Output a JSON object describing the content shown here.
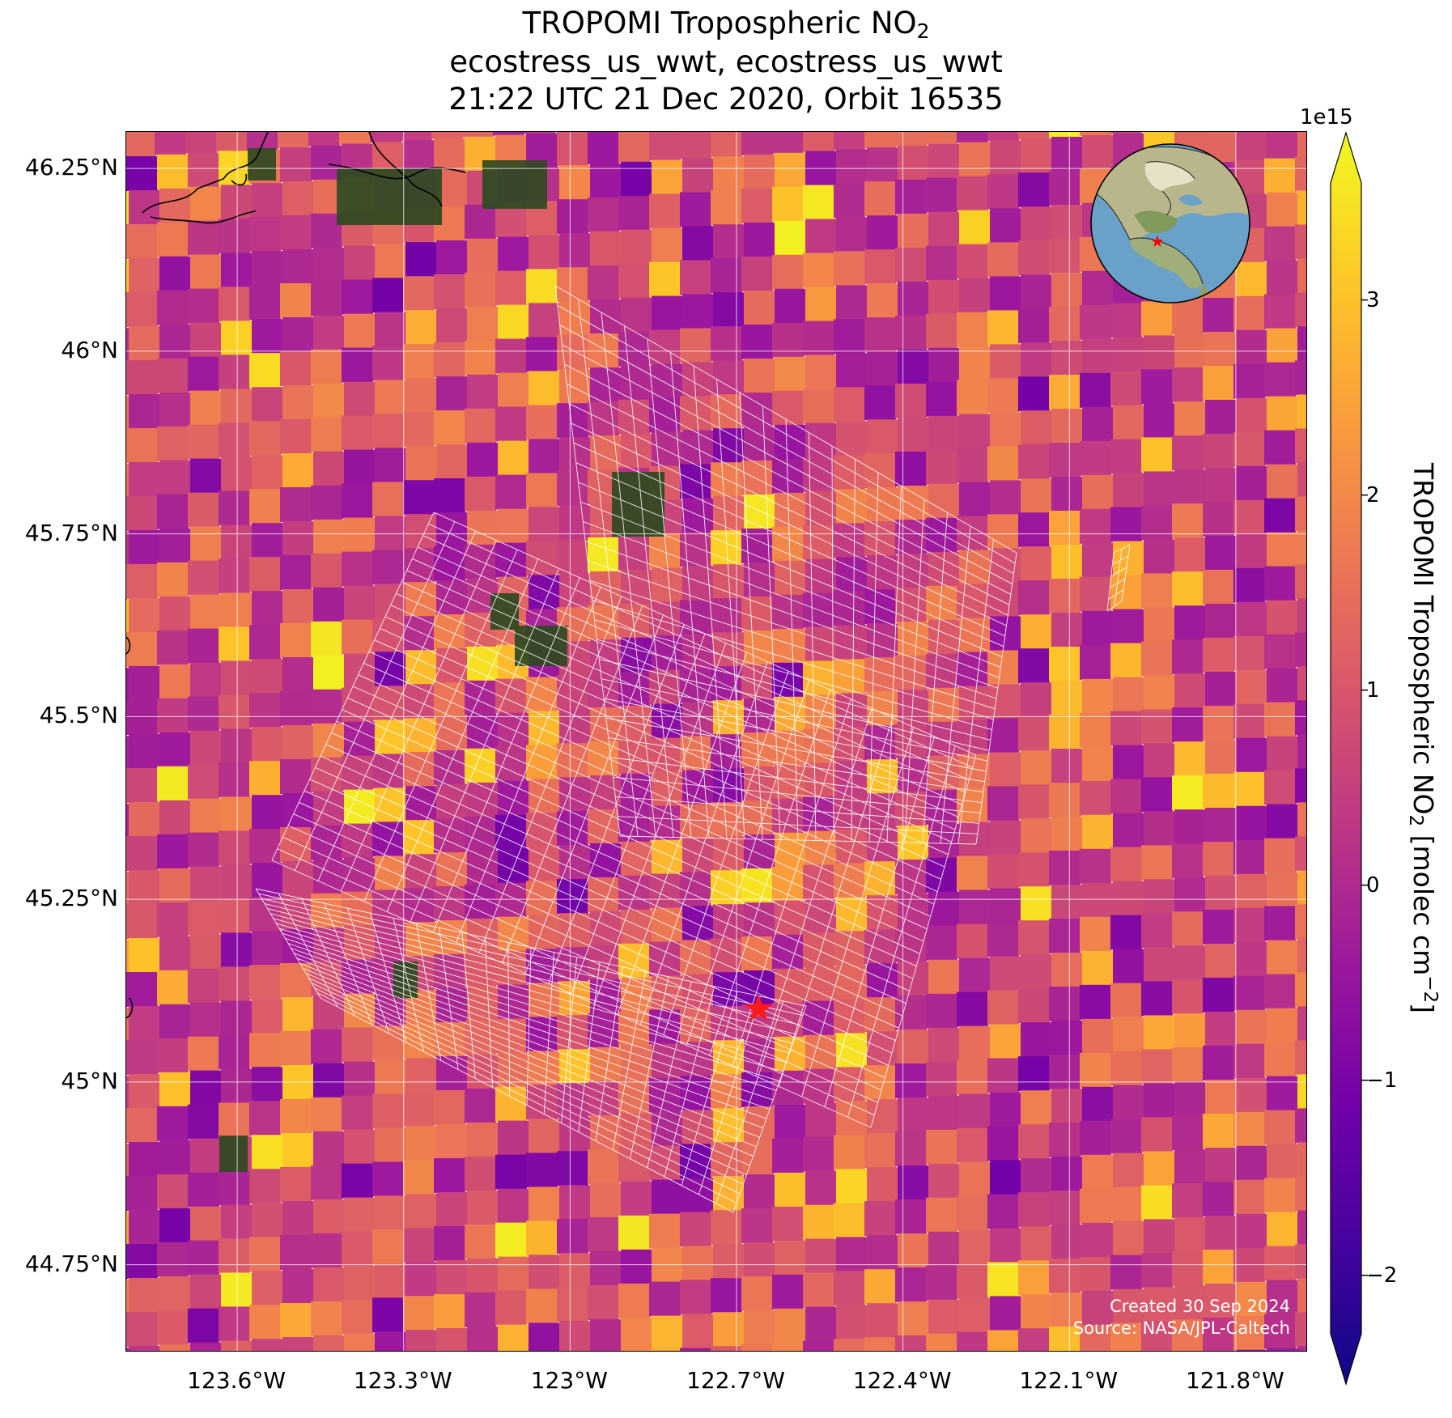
{
  "title": {
    "main": "TROPOMI Tropospheric NO",
    "main_sub": "2",
    "line2": "ecostress_us_wwt, ecostress_us_wwt",
    "line3": "21:22 UTC 21 Dec 2020, Orbit 16535"
  },
  "map": {
    "lon_range": [
      -123.8,
      -121.67
    ],
    "lat_range": [
      44.63,
      46.3
    ],
    "lat_ticks": [
      {
        "value": 46.25,
        "label": "46.25°N"
      },
      {
        "value": 46.0,
        "label": "46°N"
      },
      {
        "value": 45.75,
        "label": "45.75°N"
      },
      {
        "value": 45.5,
        "label": "45.5°N"
      },
      {
        "value": 45.25,
        "label": "45.25°N"
      },
      {
        "value": 45.0,
        "label": "45°N"
      },
      {
        "value": 44.75,
        "label": "44.75°N"
      }
    ],
    "lon_ticks": [
      {
        "value": -123.6,
        "label": "123.6°W"
      },
      {
        "value": -123.3,
        "label": "123.3°W"
      },
      {
        "value": -123.0,
        "label": "123°W"
      },
      {
        "value": -122.7,
        "label": "122.7°W"
      },
      {
        "value": -122.4,
        "label": "122.4°W"
      },
      {
        "value": -122.1,
        "label": "122.1°W"
      },
      {
        "value": -121.8,
        "label": "121.8°W"
      }
    ],
    "site_marker": {
      "lon": -122.66,
      "lat": 45.1,
      "color": "#ff1a1a"
    },
    "gridlines": true,
    "overlay": "inset globe (top-right) centered on North America with red star at site",
    "credits": {
      "line1": "Created 30 Sep 2024",
      "line2": "Source: NASA/JPL-Caltech"
    }
  },
  "colorbar": {
    "colormap": "plasma",
    "range": [
      -2.3,
      3.6
    ],
    "exponent_label": "1e15",
    "ticks": [
      {
        "value": 3,
        "label": "3"
      },
      {
        "value": 2,
        "label": "2"
      },
      {
        "value": 1,
        "label": "1"
      },
      {
        "value": 0,
        "label": "0"
      },
      {
        "value": -1,
        "label": "−1"
      },
      {
        "value": -2,
        "label": "−2"
      }
    ],
    "label_main": "TROPOMI Tropospheric NO",
    "label_sub": "2",
    "label_units": " [molec cm",
    "label_sup": "−2",
    "label_end": "]",
    "extend": "both"
  },
  "colors": {
    "plasma": [
      "#0d0887",
      "#46039f",
      "#7201a8",
      "#9c179e",
      "#bd3786",
      "#d8576b",
      "#ed7953",
      "#fb9f3a",
      "#fdca26",
      "#f0f921"
    ],
    "ecostress_outline": "#ffffff",
    "ocean": "#6aa1c8",
    "land": "#8aa36b"
  }
}
